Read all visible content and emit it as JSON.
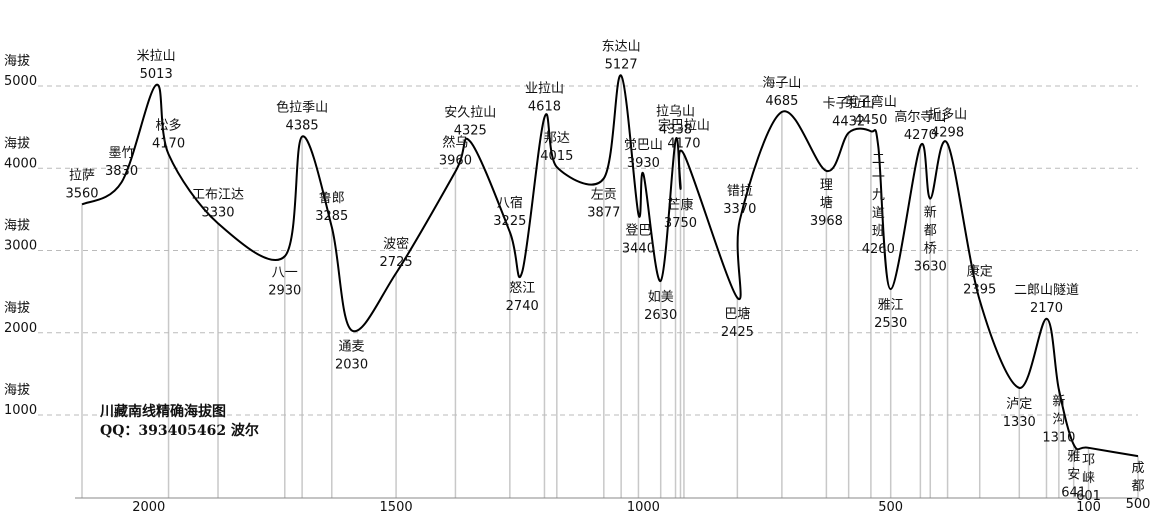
{
  "chart_data": {
    "type": "line",
    "title": "川藏南线精确海拔图",
    "subtitle": "QQ：393405462 波尔",
    "xlabel": "",
    "ylabel": "",
    "x_reversed": true,
    "xlim": [
      2135,
      0
    ],
    "ylim": [
      0,
      6000
    ],
    "x_ticks": [
      2000,
      1500,
      1000,
      500,
      100
    ],
    "y_ticks": [
      {
        "label": "海拔",
        "value": "5000",
        "y": 5000
      },
      {
        "label": "海拔",
        "value": "4000",
        "y": 4000
      },
      {
        "label": "海拔",
        "value": "3000",
        "y": 3000
      },
      {
        "label": "海拔",
        "value": "2000",
        "y": 2000
      },
      {
        "label": "海拔",
        "value": "1000",
        "y": 1000
      }
    ],
    "grid": {
      "horizontal": true,
      "dashed": true
    },
    "points": [
      {
        "name": "拉萨",
        "km": 2135,
        "alt": 3560
      },
      {
        "name": "墨竹",
        "km": 2055,
        "alt": 3830
      },
      {
        "name": "米拉山",
        "km": 1985,
        "alt": 5013
      },
      {
        "name": "松多",
        "km": 1960,
        "alt": 4170
      },
      {
        "name": "工布江达",
        "km": 1860,
        "alt": 3330
      },
      {
        "name": "八一",
        "km": 1725,
        "alt": 2930
      },
      {
        "name": "色拉季山",
        "km": 1690,
        "alt": 4385
      },
      {
        "name": "鲁郎",
        "km": 1630,
        "alt": 3285
      },
      {
        "name": "通麦",
        "km": 1590,
        "alt": 2030
      },
      {
        "name": "波密",
        "km": 1500,
        "alt": 2725
      },
      {
        "name": "然乌",
        "km": 1380,
        "alt": 3960
      },
      {
        "name": "安久拉山",
        "km": 1350,
        "alt": 4325
      },
      {
        "name": "八宿",
        "km": 1270,
        "alt": 3225
      },
      {
        "name": "怒江",
        "km": 1245,
        "alt": 2740
      },
      {
        "name": "业拉山",
        "km": 1200,
        "alt": 4618
      },
      {
        "name": "邦达",
        "km": 1175,
        "alt": 4015
      },
      {
        "name": "左贡",
        "km": 1080,
        "alt": 3877
      },
      {
        "name": "东达山",
        "km": 1045,
        "alt": 5127
      },
      {
        "name": "登巴",
        "km": 1010,
        "alt": 3440
      },
      {
        "name": "觉巴山",
        "km": 1000,
        "alt": 3930
      },
      {
        "name": "如美",
        "km": 965,
        "alt": 2630
      },
      {
        "name": "拉乌山",
        "km": 935,
        "alt": 4338
      },
      {
        "name": "芒康",
        "km": 925,
        "alt": 3750
      },
      {
        "name": "宗巴拉山",
        "km": 918,
        "alt": 4170
      },
      {
        "name": "巴塘",
        "km": 810,
        "alt": 2425
      },
      {
        "name": "错拉",
        "km": 805,
        "alt": 3370
      },
      {
        "name": "海子山",
        "km": 720,
        "alt": 4685
      },
      {
        "name": "理塘",
        "km": 630,
        "alt": 3968
      },
      {
        "name": "卡子拉山",
        "km": 585,
        "alt": 4432
      },
      {
        "name": "剪子弯山",
        "km": 540,
        "alt": 4450
      },
      {
        "name": "二一九道班",
        "km": 525,
        "alt": 4260
      },
      {
        "name": "雅江",
        "km": 500,
        "alt": 2530
      },
      {
        "name": "高尔寺山",
        "km": 440,
        "alt": 4270
      },
      {
        "name": "新都桥",
        "km": 420,
        "alt": 3630
      },
      {
        "name": "折多山",
        "km": 385,
        "alt": 4298
      },
      {
        "name": "康定",
        "km": 320,
        "alt": 2395
      },
      {
        "name": "泸定",
        "km": 240,
        "alt": 1330
      },
      {
        "name": "二郎山隧道",
        "km": 185,
        "alt": 2170
      },
      {
        "name": "新沟",
        "km": 160,
        "alt": 1310
      },
      {
        "name": "雅安",
        "km": 130,
        "alt": 641
      },
      {
        "name": "邛崃",
        "km": 100,
        "alt": 601
      },
      {
        "name": "成都",
        "km": 0,
        "alt": 500
      }
    ],
    "vertical_line_km": [
      2135,
      1960,
      1860,
      1725,
      1690,
      1630,
      1500,
      1380,
      1270,
      1200,
      1175,
      1080,
      1045,
      1010,
      965,
      935,
      925,
      918,
      810,
      720,
      630,
      585,
      540,
      500,
      440,
      420,
      385,
      320,
      240,
      185,
      160,
      130,
      100,
      0
    ]
  }
}
